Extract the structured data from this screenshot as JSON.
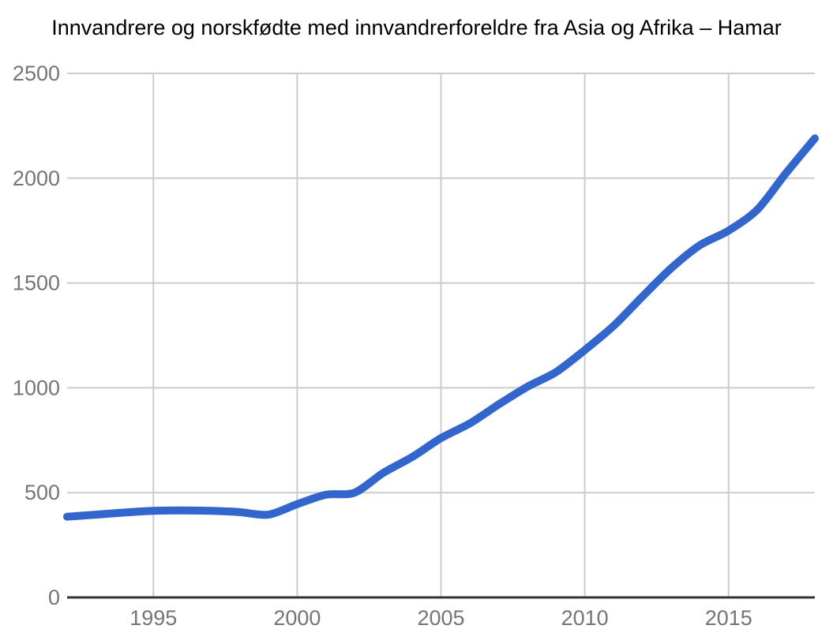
{
  "title": "Innvandrere og norskfødte med innvandrerforeldre fra Asia og Afrika – Hamar",
  "colors": {
    "line": "#3366CC",
    "grid": "#CCCCCC",
    "axis_baseline": "#333333",
    "tick_label": "#757575",
    "title": "#000000",
    "background": "#FFFFFF"
  },
  "chart_data": {
    "type": "line",
    "title": "Innvandrere og norskfødte med innvandrerforeldre fra Asia og Afrika – Hamar",
    "xlabel": "",
    "ylabel": "",
    "x": [
      1992,
      1993,
      1994,
      1995,
      1996,
      1997,
      1998,
      1999,
      2000,
      2001,
      2002,
      2003,
      2004,
      2005,
      2006,
      2007,
      2008,
      2009,
      2010,
      2011,
      2012,
      2013,
      2014,
      2015,
      2016,
      2017,
      2018
    ],
    "series": [
      {
        "name": "Innvandrere og norskfødte med innvandrerforeldre",
        "values": [
          385,
          395,
          405,
          413,
          415,
          413,
          407,
          395,
          445,
          490,
          500,
          595,
          670,
          760,
          830,
          920,
          1005,
          1075,
          1180,
          1295,
          1435,
          1570,
          1680,
          1750,
          1850,
          2025,
          2190
        ]
      }
    ],
    "xlim": [
      1992,
      2018
    ],
    "ylim": [
      0,
      2500
    ],
    "x_ticks": [
      1995,
      2000,
      2005,
      2010,
      2015
    ],
    "y_ticks": [
      0,
      500,
      1000,
      1500,
      2000,
      2500
    ],
    "grid": true,
    "legend": "none",
    "smooth": true,
    "line_width": 10
  }
}
